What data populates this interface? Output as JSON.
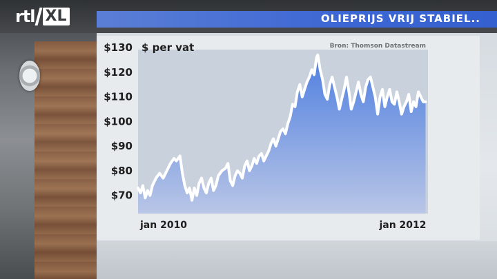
{
  "broadcaster": {
    "logo_main": "rtl",
    "logo_badge": "XL"
  },
  "header": {
    "title": "OLIEPRIJS VRIJ STABIEL.."
  },
  "chart_data": {
    "type": "area",
    "ylabel": "$ per vat",
    "source": "Bron: Thomson Datastream",
    "ylim": [
      66,
      130
    ],
    "ytick_labels": [
      "$130",
      "$120",
      "$110",
      "$100",
      "$90",
      "$80",
      "$70"
    ],
    "ytick_values": [
      130,
      120,
      110,
      100,
      90,
      80,
      70
    ],
    "xtick_labels": [
      "jan 2010",
      "jan 2012"
    ],
    "xtick_values": [
      0,
      24
    ],
    "xlim": [
      0,
      24.2
    ],
    "colors": {
      "area_top": "#4f7fe0",
      "area_bottom": "#b9c6e6",
      "line": "#ffffff"
    },
    "series": [
      {
        "x": [
          0.0,
          0.2,
          0.4,
          0.6,
          0.8,
          1.0,
          1.2,
          1.5,
          1.8,
          2.1,
          2.4,
          2.7,
          3.0,
          3.2,
          3.5,
          3.7,
          3.9,
          4.1,
          4.3,
          4.5,
          4.7,
          4.9,
          5.1,
          5.3,
          5.5,
          5.7,
          5.9,
          6.1,
          6.3,
          6.5,
          6.7,
          7.0,
          7.3,
          7.5,
          7.7,
          7.9,
          8.1,
          8.3,
          8.5,
          8.7,
          8.9,
          9.1,
          9.3,
          9.5,
          9.7,
          9.9,
          10.1,
          10.3,
          10.5,
          10.7,
          10.9,
          11.1,
          11.3,
          11.5,
          11.7,
          11.9,
          12.1,
          12.3,
          12.5,
          12.7,
          12.9,
          13.1,
          13.3,
          13.5,
          13.7,
          13.9,
          14.1,
          14.3,
          14.5,
          14.7,
          14.9,
          15.0,
          15.2,
          15.4,
          15.6,
          15.8,
          16.0,
          16.2,
          16.4,
          16.6,
          16.8,
          17.0,
          17.2,
          17.4,
          17.6,
          17.8,
          18.0,
          18.2,
          18.4,
          18.6,
          18.8,
          19.0,
          19.2,
          19.4,
          19.6,
          19.8,
          20.0,
          20.2,
          20.4,
          20.6,
          20.8,
          21.0,
          21.2,
          21.4,
          21.6,
          21.8,
          22.0,
          22.2,
          22.4,
          22.6,
          22.8,
          23.0,
          23.2,
          23.4,
          23.6,
          23.8,
          24.0
        ],
        "values": [
          73,
          71,
          74,
          69,
          72,
          70,
          74,
          77,
          79,
          77,
          80,
          83,
          85,
          84,
          86,
          79,
          74,
          71,
          73,
          68,
          73,
          70,
          75,
          77,
          73,
          71,
          75,
          77,
          72,
          74,
          78,
          80,
          81,
          83,
          76,
          74,
          78,
          80,
          79,
          77,
          82,
          84,
          80,
          82,
          85,
          83,
          86,
          87,
          84,
          86,
          88,
          91,
          93,
          90,
          93,
          96,
          97,
          95,
          99,
          102,
          107,
          106,
          112,
          115,
          110,
          113,
          116,
          118,
          121,
          119,
          126,
          127,
          121,
          117,
          111,
          109,
          115,
          118,
          114,
          110,
          105,
          109,
          113,
          118,
          112,
          105,
          108,
          112,
          116,
          111,
          108,
          114,
          117,
          118,
          114,
          110,
          103,
          110,
          113,
          106,
          110,
          113,
          108,
          107,
          112,
          108,
          103,
          106,
          108,
          111,
          104,
          108,
          106,
          112,
          110,
          108,
          108
        ]
      }
    ]
  }
}
